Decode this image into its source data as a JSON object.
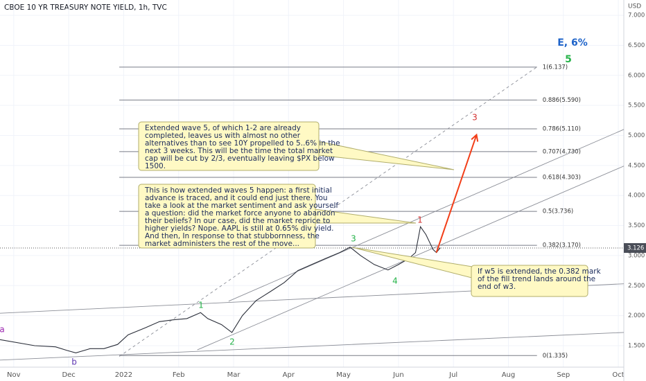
{
  "header": {
    "title": "CBOE 10 YR TREASURY NOTE YIELD, 1h, TVC"
  },
  "chart_data": {
    "type": "line",
    "unit": "USD",
    "color": "#2a2e39",
    "x": [
      -0.25,
      0.38,
      0.76,
      0.97,
      1.13,
      1.39,
      1.64,
      1.89,
      2.08,
      2.4,
      2.65,
      2.9,
      3.15,
      3.4,
      3.53,
      3.78,
      3.97,
      4.16,
      4.41,
      4.67,
      4.92,
      5.17,
      5.42,
      5.67,
      5.93,
      6.12,
      6.31,
      6.56,
      6.81,
      7.0,
      7.19,
      7.31,
      7.4,
      7.5,
      7.63,
      7.69,
      7.76
    ],
    "values": [
      1.6,
      1.5,
      1.48,
      1.42,
      1.38,
      1.45,
      1.45,
      1.52,
      1.68,
      1.8,
      1.9,
      1.93,
      1.95,
      2.05,
      1.95,
      1.85,
      1.72,
      2.0,
      2.25,
      2.4,
      2.55,
      2.75,
      2.85,
      2.95,
      3.05,
      3.14,
      3.0,
      2.85,
      2.76,
      2.85,
      2.95,
      3.05,
      3.48,
      3.35,
      3.1,
      3.05,
      3.13
    ],
    "xlim": [
      -0.25,
      11.1
    ],
    "xticks": [
      {
        "value": 0,
        "label": "Nov"
      },
      {
        "value": 1,
        "label": "Dec"
      },
      {
        "value": 2,
        "label": "2022"
      },
      {
        "value": 3,
        "label": "Feb"
      },
      {
        "value": 4,
        "label": "Mar"
      },
      {
        "value": 5,
        "label": "Apr"
      },
      {
        "value": 6,
        "label": "May"
      },
      {
        "value": 7,
        "label": "Jun"
      },
      {
        "value": 8,
        "label": "Jul"
      },
      {
        "value": 9,
        "label": "Aug"
      },
      {
        "value": 10,
        "label": "Sep"
      },
      {
        "value": 11,
        "label": "Oct"
      }
    ],
    "ylim": [
      1.142,
      7.255
    ],
    "yticks": [
      {
        "value": 1.5,
        "label": "1.500"
      },
      {
        "value": 2,
        "label": "2.000"
      },
      {
        "value": 2.5,
        "label": "2.500"
      },
      {
        "value": 3,
        "label": "3.000"
      },
      {
        "value": 3.5,
        "label": "3.500"
      },
      {
        "value": 4,
        "label": "4.000"
      },
      {
        "value": 4.5,
        "label": "4.500"
      },
      {
        "value": 5,
        "label": "5.000"
      },
      {
        "value": 5.5,
        "label": "5.500"
      },
      {
        "value": 6,
        "label": "6.000"
      },
      {
        "value": 6.5,
        "label": "6.500"
      },
      {
        "value": 7,
        "label": "7.000"
      }
    ],
    "grid": true,
    "last_value": 3.126,
    "fib_span": [
      1.92,
      9.52
    ],
    "fib_levels": [
      {
        "value": 6.137,
        "label": "1(6.137)"
      },
      {
        "value": 5.59,
        "label": "0.886(5.590)"
      },
      {
        "value": 5.11,
        "label": "0.786(5.110)"
      },
      {
        "value": 4.73,
        "label": "0.707(4.730)"
      },
      {
        "value": 4.303,
        "label": "0.618(4.303)"
      },
      {
        "value": 3.736,
        "label": "0.5(3.736)"
      },
      {
        "value": 3.17,
        "label": "0.382(3.170)"
      },
      {
        "value": 1.335,
        "label": "0(1.335)"
      }
    ],
    "trend_lines": [
      {
        "x": [
          1.92,
          9.52
        ],
        "y": [
          1.32,
          6.14
        ],
        "dashed": true
      },
      {
        "x": [
          -0.25,
          11.1
        ],
        "y": [
          2.04,
          2.53
        ],
        "dashed": false
      },
      {
        "x": [
          -0.25,
          11.1
        ],
        "y": [
          1.26,
          1.72
        ],
        "dashed": false
      },
      {
        "x": [
          3.91,
          11.1
        ],
        "y": [
          2.24,
          5.1
        ],
        "dashed": false
      },
      {
        "x": [
          3.34,
          11.1
        ],
        "y": [
          1.43,
          4.49
        ],
        "dashed": false
      }
    ],
    "arrow": {
      "x": [
        7.69,
        8.42
      ],
      "y": [
        3.05,
        5.01
      ],
      "color": "#f23e18"
    },
    "wave_labels": [
      {
        "text": "a",
        "color": "#9c27b0"
      },
      {
        "text": "b",
        "color": "#5e35b1"
      },
      {
        "text": "1",
        "color": "#26b34a"
      },
      {
        "text": "2",
        "color": "#26b34a"
      },
      {
        "text": "3",
        "color": "#26b34a"
      },
      {
        "text": "4",
        "color": "#26b34a"
      },
      {
        "text": "1",
        "color": "#d32f2f"
      },
      {
        "text": "3",
        "color": "#d32f2f"
      },
      {
        "text": "5",
        "color": "#26b34a"
      },
      {
        "text": "E, 6%",
        "color": "#1e63c9"
      }
    ],
    "notes": [
      {
        "lines": [
          "Extended wave 5, of which 1-2 are already",
          "completed, leaves us with almost no other",
          "alternatives than to see 10Y propelled to 5..6% in the",
          "next 3 weeks. This will be the time the total market",
          "cap will be cut by 2/3, eventually leaving $PX below",
          "1500."
        ]
      },
      {
        "lines": [
          "This is how extended waves 5 happen: a first initial",
          "advance is traced, and it could end just there. You",
          "take a look at the market sentiment and ask yourself",
          "a question: did the market force anyone to abandon",
          "their beliefs? In our case, did the market reprice to",
          "higher yields? Nope. AAPL is still at 0.65% div yield.",
          "And then, In response to that stubbornness, the",
          "market administers the rest of the move..."
        ]
      },
      {
        "lines": [
          "If w5 is extended, the 0.382 mark",
          "of the fill trend lands around the",
          "end of w3."
        ]
      }
    ]
  }
}
